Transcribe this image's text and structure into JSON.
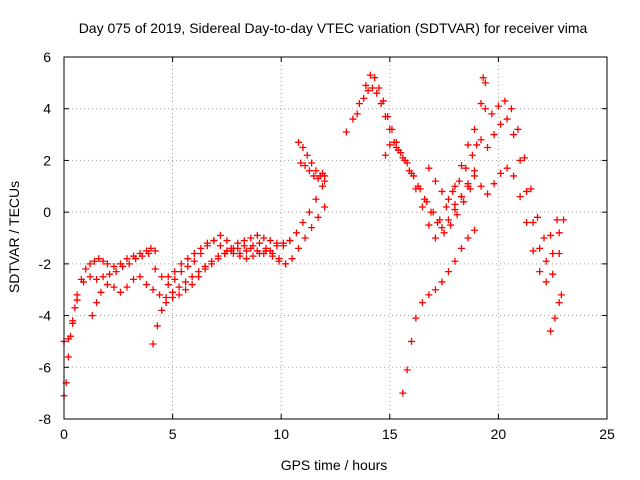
{
  "chart_data": {
    "type": "scatter",
    "title": "Day 075 of 2019, Sidereal Day-to-day VTEC variation (SDTVAR) for receiver vima",
    "xlabel": "GPS time / hours",
    "ylabel": "SDTVAR / TECUs",
    "xlim": [
      0,
      25
    ],
    "ylim": [
      -8,
      6
    ],
    "xticks": [
      0,
      5,
      10,
      15,
      20,
      25
    ],
    "yticks": [
      -8,
      -6,
      -4,
      -2,
      0,
      2,
      4,
      6
    ],
    "xtick_labels": [
      "0",
      "5",
      "10",
      "15",
      "20",
      "25"
    ],
    "ytick_labels": [
      "-8",
      "-6",
      "-4",
      "-2",
      "0",
      "2",
      "4",
      "6"
    ],
    "grid": true,
    "marker": "plus",
    "color": "#ff0000",
    "series": [
      {
        "x": [
          0.0,
          0.1,
          0.2,
          0.3,
          0.4,
          0.5,
          0.6,
          0.8,
          1.0,
          1.2,
          1.4,
          1.6,
          1.8,
          2.0,
          2.3,
          2.6,
          2.9,
          3.2,
          3.5,
          3.8,
          4.0
        ],
        "y": [
          -7.1,
          -6.6,
          -5.6,
          -4.8,
          -4.2,
          -3.7,
          -3.2,
          -2.6,
          -2.2,
          -2.0,
          -1.9,
          -1.8,
          -1.9,
          -2.0,
          -2.1,
          -2.0,
          -1.8,
          -1.7,
          -1.6,
          -1.5,
          -1.4
        ]
      },
      {
        "x": [
          0.0,
          0.2,
          0.4,
          0.6,
          0.9,
          1.2,
          1.5,
          1.8,
          2.1,
          2.4,
          2.7,
          3.0,
          3.3,
          3.6,
          3.9,
          4.2
        ],
        "y": [
          -5.0,
          -4.9,
          -4.3,
          -3.4,
          -2.7,
          -2.5,
          -2.6,
          -2.5,
          -2.4,
          -2.3,
          -2.1,
          -2.0,
          -1.8,
          -1.7,
          -1.6,
          -1.5
        ]
      },
      {
        "x": [
          1.3,
          1.5,
          1.7,
          2.0,
          2.3,
          2.6,
          2.9,
          3.2,
          3.5,
          3.8,
          4.1,
          4.4,
          4.7,
          5.0,
          5.3,
          5.6,
          5.9,
          6.2,
          6.5,
          6.8,
          7.1,
          7.4,
          7.7,
          8.0,
          8.3,
          8.6,
          8.9,
          9.2,
          9.5,
          9.8,
          10.1,
          10.4
        ],
        "y": [
          -4.0,
          -3.5,
          -3.1,
          -2.8,
          -2.9,
          -3.1,
          -2.9,
          -2.6,
          -2.5,
          -2.8,
          -3.0,
          -3.2,
          -3.3,
          -3.1,
          -2.9,
          -2.7,
          -2.5,
          -2.3,
          -2.1,
          -1.9,
          -1.7,
          -1.6,
          -1.5,
          -1.4,
          -1.3,
          -1.4,
          -1.5,
          -1.6,
          -1.5,
          -1.3,
          -1.2,
          -1.1
        ]
      },
      {
        "x": [
          4.1,
          4.3,
          4.5,
          4.7,
          5.0,
          5.3,
          5.6,
          5.9,
          6.2,
          6.5,
          6.8,
          7.1,
          7.4,
          7.7,
          8.0,
          8.3,
          8.6,
          8.9,
          9.2,
          9.5,
          9.8,
          10.1,
          10.4,
          10.7,
          11.0,
          11.3,
          11.6,
          11.9,
          12.0
        ],
        "y": [
          -5.1,
          -4.4,
          -3.8,
          -3.5,
          -3.3,
          -3.2,
          -3.0,
          -2.8,
          -2.5,
          -2.2,
          -2.0,
          -1.8,
          -1.6,
          -1.4,
          -1.2,
          -1.1,
          -1.0,
          -0.9,
          -1.0,
          -1.1,
          -1.2,
          -1.3,
          -1.1,
          -0.8,
          -0.4,
          0.0,
          0.5,
          1.0,
          1.4
        ]
      },
      {
        "x": [
          4.8,
          5.1,
          5.4,
          5.7,
          6.0,
          6.3,
          6.6,
          6.9,
          7.2,
          7.5,
          7.8,
          8.1,
          8.4,
          8.7,
          9.0,
          9.3,
          9.6,
          9.9,
          10.2,
          10.5,
          10.8,
          11.1,
          11.4,
          11.7,
          12.0
        ],
        "y": [
          -2.5,
          -2.3,
          -2.0,
          -1.8,
          -1.6,
          -1.4,
          -1.2,
          -1.1,
          -1.3,
          -1.5,
          -1.6,
          -1.7,
          -1.8,
          -1.7,
          -1.6,
          -1.5,
          -1.7,
          -1.9,
          -2.0,
          -1.8,
          -1.4,
          -1.0,
          -0.6,
          -0.2,
          0.2
        ]
      },
      {
        "x": [
          4.2,
          4.5,
          4.8,
          5.1,
          5.4,
          5.7,
          6.0,
          6.3,
          6.6,
          6.9,
          7.2,
          7.5,
          7.8,
          8.1,
          8.4,
          8.7,
          9.0,
          9.3,
          9.6,
          9.9,
          10.2
        ],
        "y": [
          -2.2,
          -2.5,
          -2.8,
          -2.6,
          -2.3,
          -2.1,
          -1.9,
          -1.6,
          -1.3,
          -1.1,
          -0.9,
          -1.1,
          -1.4,
          -1.6,
          -1.5,
          -1.3,
          -1.2,
          -1.4,
          -1.6,
          -1.8,
          -2.0
        ]
      },
      {
        "x": [
          10.8,
          11.0,
          11.2,
          11.4,
          11.6,
          11.8,
          12.0
        ],
        "y": [
          2.7,
          2.5,
          2.2,
          1.9,
          1.6,
          1.4,
          1.2
        ]
      },
      {
        "x": [
          10.9,
          11.1,
          11.3,
          11.5,
          11.7,
          11.9
        ],
        "y": [
          1.9,
          1.8,
          1.6,
          1.4,
          1.3,
          1.5
        ]
      },
      {
        "x": [
          13.0,
          13.3,
          13.6,
          13.9,
          14.1,
          14.3,
          14.5,
          14.7,
          14.9,
          15.1,
          15.3,
          15.5,
          15.8,
          16.1,
          16.4,
          16.7,
          17.0,
          17.3,
          17.6,
          17.9,
          18.2,
          18.5,
          18.8,
          19.0
        ],
        "y": [
          3.1,
          3.6,
          4.2,
          4.9,
          5.3,
          5.2,
          4.8,
          4.3,
          3.7,
          3.2,
          2.7,
          2.3,
          1.9,
          1.4,
          0.9,
          0.4,
          0.0,
          -0.3,
          0.2,
          0.8,
          1.2,
          1.7,
          2.2,
          2.6
        ]
      },
      {
        "x": [
          13.5,
          13.8,
          14.0,
          14.2,
          14.4,
          14.6,
          14.8,
          15.0,
          15.2,
          15.4,
          15.7,
          16.0,
          16.3,
          16.6,
          16.9,
          17.2,
          17.5,
          17.8,
          18.1,
          18.4,
          18.7
        ],
        "y": [
          3.8,
          4.4,
          4.7,
          4.8,
          4.6,
          4.2,
          3.7,
          3.2,
          2.7,
          2.4,
          2.0,
          1.5,
          1.0,
          0.5,
          0.0,
          -0.4,
          -0.8,
          -0.5,
          -0.1,
          0.4,
          0.9
        ]
      },
      {
        "x": [
          14.8,
          15.0,
          15.3,
          15.6,
          15.9,
          16.2,
          16.5,
          16.8,
          17.1,
          17.4,
          17.7,
          18.0,
          18.3,
          18.6,
          18.9
        ],
        "y": [
          2.2,
          2.6,
          2.5,
          2.1,
          1.6,
          0.9,
          0.2,
          -0.5,
          -1.0,
          -0.6,
          -0.3,
          0.1,
          0.6,
          1.1,
          1.6
        ]
      },
      {
        "x": [
          15.6,
          15.8,
          16.0,
          16.2,
          16.5,
          16.8,
          17.1,
          17.4,
          17.7,
          18.0,
          18.3,
          18.6,
          18.9
        ],
        "y": [
          -7.0,
          -6.1,
          -5.0,
          -4.1,
          -3.5,
          -3.2,
          -3.0,
          -2.7,
          -2.3,
          -1.9,
          -1.4,
          -1.0,
          -0.7
        ]
      },
      {
        "x": [
          16.8,
          17.1,
          17.4,
          17.7,
          18.0,
          18.3,
          18.6,
          18.9,
          19.2,
          19.5,
          19.8,
          20.1,
          20.4,
          20.7,
          21.0,
          21.3,
          21.6,
          21.9,
          22.2,
          22.5,
          22.8,
          23.0
        ],
        "y": [
          1.7,
          1.2,
          0.8,
          0.5,
          0.3,
          0.6,
          1.0,
          1.4,
          1.0,
          0.7,
          1.1,
          1.5,
          1.7,
          1.4,
          0.6,
          -0.4,
          -1.5,
          -2.3,
          -2.7,
          -2.4,
          -1.6,
          -0.3
        ]
      },
      {
        "x": [
          18.0,
          18.3,
          18.6,
          18.9,
          19.2,
          19.5,
          19.8,
          20.1,
          20.4,
          20.7,
          21.0,
          21.3,
          21.6,
          21.9,
          22.2,
          22.5,
          22.8
        ],
        "y": [
          1.0,
          1.8,
          2.6,
          3.2,
          2.8,
          2.5,
          3.0,
          3.4,
          3.6,
          3.0,
          2.0,
          0.8,
          -0.4,
          -1.4,
          -1.9,
          -1.6,
          -0.8
        ]
      },
      {
        "x": [
          19.2,
          19.4,
          19.7,
          20.0,
          20.3,
          20.6,
          20.9,
          21.2,
          21.5,
          21.8,
          22.1,
          22.4,
          22.7
        ],
        "y": [
          4.2,
          4.0,
          3.8,
          4.1,
          4.3,
          4.0,
          3.2,
          2.1,
          0.9,
          -0.2,
          -1.0,
          -0.9,
          -0.3
        ]
      },
      {
        "x": [
          19.3,
          19.4
        ],
        "y": [
          5.2,
          5.0
        ]
      },
      {
        "x": [
          22.4,
          22.6,
          22.8,
          22.9
        ],
        "y": [
          -4.6,
          -4.1,
          -3.5,
          -3.2
        ]
      }
    ]
  }
}
